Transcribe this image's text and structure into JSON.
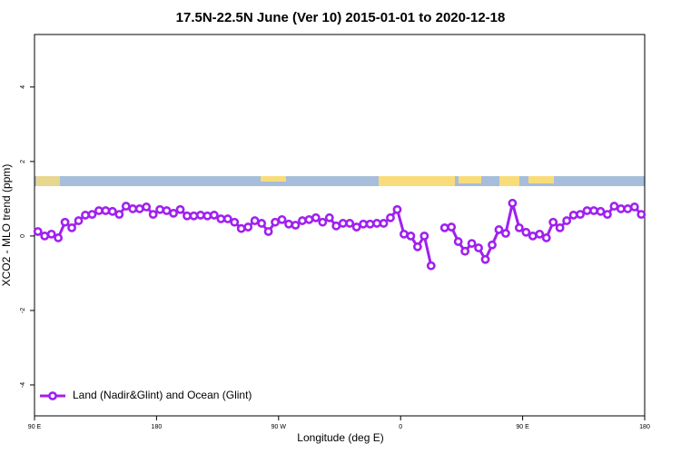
{
  "chart_data": {
    "type": "line",
    "title": "17.5N-22.5N June (Ver 10)   2015-01-01 to 2020-12-18",
    "x_label": "Longitude (deg E)",
    "y_label": "XCO2 - MLO trend (ppm)",
    "xlim": [
      90,
      540
    ],
    "ylim": [
      -4.83,
      5.41
    ],
    "xticks": [
      {
        "value": 90,
        "label": "90 E"
      },
      {
        "value": 180,
        "label": "180"
      },
      {
        "value": 270,
        "label": "90 W"
      },
      {
        "value": 360,
        "label": "0"
      },
      {
        "value": 450,
        "label": "90 E"
      },
      {
        "value": 540,
        "label": "180"
      }
    ],
    "yticks": [
      -4,
      -2,
      0,
      2,
      4
    ],
    "legend": "bottom-left",
    "x": [
      92.5,
      97.5,
      102.5,
      107.5,
      112.5,
      117.5,
      122.5,
      127.5,
      132.5,
      137.5,
      142.5,
      147.5,
      152.5,
      157.5,
      162.5,
      167.5,
      172.5,
      177.5,
      182.5,
      187.5,
      192.5,
      197.5,
      202.5,
      207.5,
      212.5,
      217.5,
      222.5,
      227.5,
      232.5,
      237.5,
      242.5,
      247.5,
      252.5,
      257.5,
      262.5,
      267.5,
      272.5,
      277.5,
      282.5,
      287.5,
      292.5,
      297.5,
      302.5,
      307.5,
      312.5,
      317.5,
      322.5,
      327.5,
      332.5,
      337.5,
      342.5,
      347.5,
      352.5,
      357.5,
      362.5,
      367.5,
      372.5,
      377.5,
      382.5,
      387.5,
      392.5,
      397.5,
      402.5,
      407.5,
      412.5,
      417.5,
      422.5,
      427.5,
      432.5,
      437.5,
      442.5,
      447.5,
      452.5,
      457.5,
      462.5,
      467.5,
      472.5,
      477.5,
      482.5,
      487.5,
      492.5,
      497.5,
      502.5,
      507.5,
      512.5,
      517.5,
      522.5,
      527.5,
      532.5,
      537.5
    ],
    "series": [
      {
        "name": "Land (Nadir&Glint) and Ocean (Glint)",
        "color": "#a020f0",
        "values": [
          0.12,
          0.0,
          0.05,
          -0.05,
          0.37,
          0.22,
          0.41,
          0.56,
          0.58,
          0.68,
          0.68,
          0.66,
          0.58,
          0.8,
          0.73,
          0.73,
          0.78,
          0.58,
          0.71,
          0.68,
          0.61,
          0.71,
          0.54,
          0.54,
          0.56,
          0.54,
          0.56,
          0.46,
          0.46,
          0.37,
          0.2,
          0.24,
          0.41,
          0.34,
          0.12,
          0.37,
          0.44,
          0.32,
          0.29,
          0.41,
          0.44,
          0.49,
          0.37,
          0.49,
          0.27,
          0.34,
          0.34,
          0.24,
          0.32,
          0.32,
          0.34,
          0.34,
          0.49,
          0.71,
          0.05,
          0.0,
          -0.29,
          0.0,
          -0.8,
          null,
          0.22,
          0.24,
          -0.15,
          -0.41,
          -0.2,
          -0.32,
          -0.63,
          -0.24,
          0.17,
          0.07,
          0.88,
          0.22,
          0.1,
          0.0,
          0.05,
          -0.05,
          0.37,
          0.22,
          0.41,
          0.56,
          0.58,
          0.68,
          0.68,
          0.66,
          0.58,
          0.8,
          0.73,
          0.73,
          0.78,
          0.58
        ]
      }
    ]
  }
}
